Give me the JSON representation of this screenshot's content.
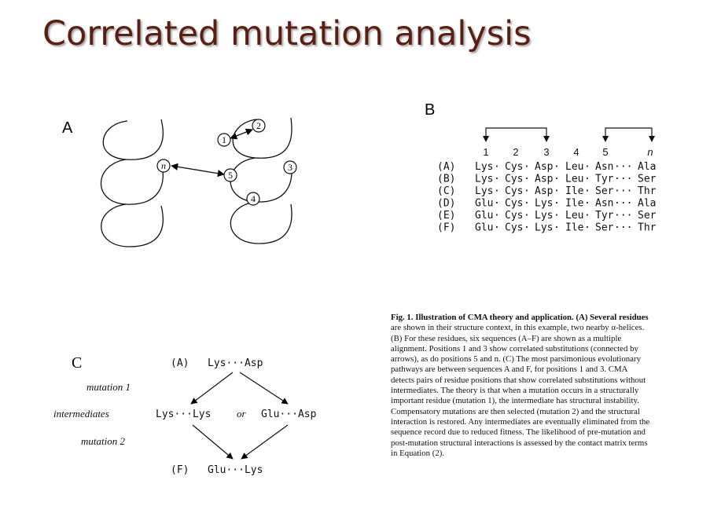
{
  "title": "Correlated mutation analysis",
  "panel_a": {
    "label": "A",
    "residues": [
      "1",
      "2",
      "3",
      "4",
      "5",
      "n"
    ]
  },
  "panel_b": {
    "label": "B",
    "positions": [
      "1",
      "2",
      "3",
      "4",
      "5",
      "n"
    ],
    "sequences": [
      {
        "id": "(A)",
        "residues": [
          "Lys",
          "Cys",
          "Asp",
          "Leu",
          "Asn",
          "Ala"
        ]
      },
      {
        "id": "(B)",
        "residues": [
          "Lys",
          "Cys",
          "Asp",
          "Leu",
          "Tyr",
          "Ser"
        ]
      },
      {
        "id": "(C)",
        "residues": [
          "Lys",
          "Cys",
          "Asp",
          "Ile",
          "Ser",
          "Thr"
        ]
      },
      {
        "id": "(D)",
        "residues": [
          "Glu",
          "Cys",
          "Lys",
          "Ile",
          "Asn",
          "Ala"
        ]
      },
      {
        "id": "(E)",
        "residues": [
          "Glu",
          "Cys",
          "Lys",
          "Leu",
          "Tyr",
          "Ser"
        ]
      },
      {
        "id": "(F)",
        "residues": [
          "Glu",
          "Cys",
          "Lys",
          "Ile",
          "Ser",
          "Thr"
        ]
      }
    ]
  },
  "panel_c": {
    "label": "C",
    "top_id": "(A)",
    "top_seq": "Lys···Asp",
    "mutation1": "mutation 1",
    "intermediates": "intermediates",
    "left_intermediate": "Lys···Lys",
    "or": "or",
    "right_intermediate": "Glu···Asp",
    "mutation2": "mutation 2",
    "bottom_id": "(F)",
    "bottom_seq": "Glu···Lys"
  },
  "caption": {
    "lines": [
      "Fig. 1. Illustration of CMA theory and application. (A) Several residues",
      "are shown in their structure context, in this example, two nearby α-helices.",
      "(B) For these residues, six sequences (A–F) are shown as a multiple",
      "alignment. Positions 1 and 3 show correlated substitutions (connected by",
      "arrows), as do positions 5 and n. (C) The most parsimonious evolutionary",
      "pathways are between sequences A and F, for positions 1 and 3. CMA",
      "detects pairs of residue positions that show correlated substitutions without",
      "intermediates. The theory is that when a mutation occurs in a structurally",
      "important residue (mutation 1), the intermediate has structural instability.",
      "Compensatory mutations are then selected (mutation 2) and the structural",
      "interaction is restored. Any intermediates are eventually eliminated from the",
      "sequence record due to reduced fitness. The likelihood of pre-mutation and",
      "post-mutation structural interactions is assessed by the contact matrix terms",
      "in Equation (2)."
    ]
  }
}
